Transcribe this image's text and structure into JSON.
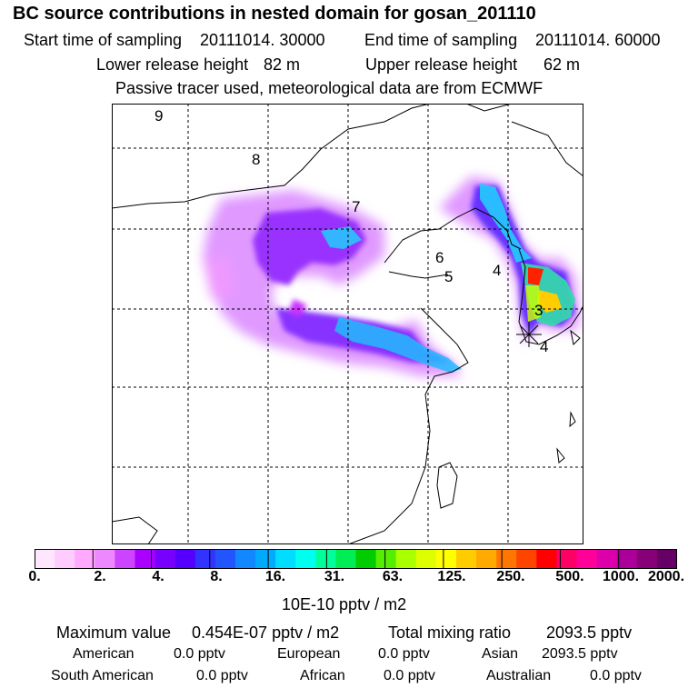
{
  "title": "BC  source contributions in nested domain for gosan_201110",
  "header": {
    "start_label": "Start time of sampling",
    "start_value": "20111014. 30000",
    "end_label": "End time of sampling",
    "end_value": "20111014. 60000",
    "lower_label": "Lower release height",
    "lower_value": "82 m",
    "upper_label": "Upper release height",
    "upper_value": "62 m",
    "note": "Passive tracer used, meteorological data are from ECMWF"
  },
  "chart_data": {
    "type": "heatmap",
    "title": "BC  source contributions in nested domain for gosan_201110",
    "colorbar": {
      "ticks": [
        "0.",
        "2.",
        "4.",
        "8.",
        "16.",
        "31.",
        "63.",
        "125.",
        "250.",
        "500.",
        "1000.",
        "2000."
      ],
      "unit_label": "10E-10 pptv / m2",
      "colors": [
        "#ffe6ff",
        "#ffccff",
        "#ffaaff",
        "#ee88ff",
        "#cc44ff",
        "#aa00ff",
        "#7700ff",
        "#5500ff",
        "#3333ff",
        "#2255ff",
        "#1188ff",
        "#00aaff",
        "#00ddff",
        "#00ffee",
        "#00ff99",
        "#00ee55",
        "#00cc00",
        "#55ee00",
        "#aaff00",
        "#ddff00",
        "#ffff00",
        "#ffcc00",
        "#ffaa00",
        "#ff7700",
        "#ff4400",
        "#ff0000",
        "#ff0066",
        "#ff0099",
        "#dd00aa",
        "#aa0099",
        "#880077",
        "#660066"
      ]
    },
    "map_labels": [
      "9",
      "8",
      "7",
      "6",
      "5",
      "4",
      "3",
      "4"
    ],
    "grid": true
  },
  "footer": {
    "max_label": "Maximum value",
    "max_value": "0.454E-07 pptv / m2",
    "total_label": "Total mixing ratio",
    "total_value": "2093.5 pptv",
    "regions": [
      {
        "name": "American",
        "value": "0.0 pptv"
      },
      {
        "name": "European",
        "value": "0.0 pptv"
      },
      {
        "name": "Asian",
        "value": "2093.5 pptv"
      },
      {
        "name": "South American",
        "value": "0.0 pptv"
      },
      {
        "name": "African",
        "value": "0.0 pptv"
      },
      {
        "name": "Australian",
        "value": "0.0 pptv"
      }
    ]
  }
}
